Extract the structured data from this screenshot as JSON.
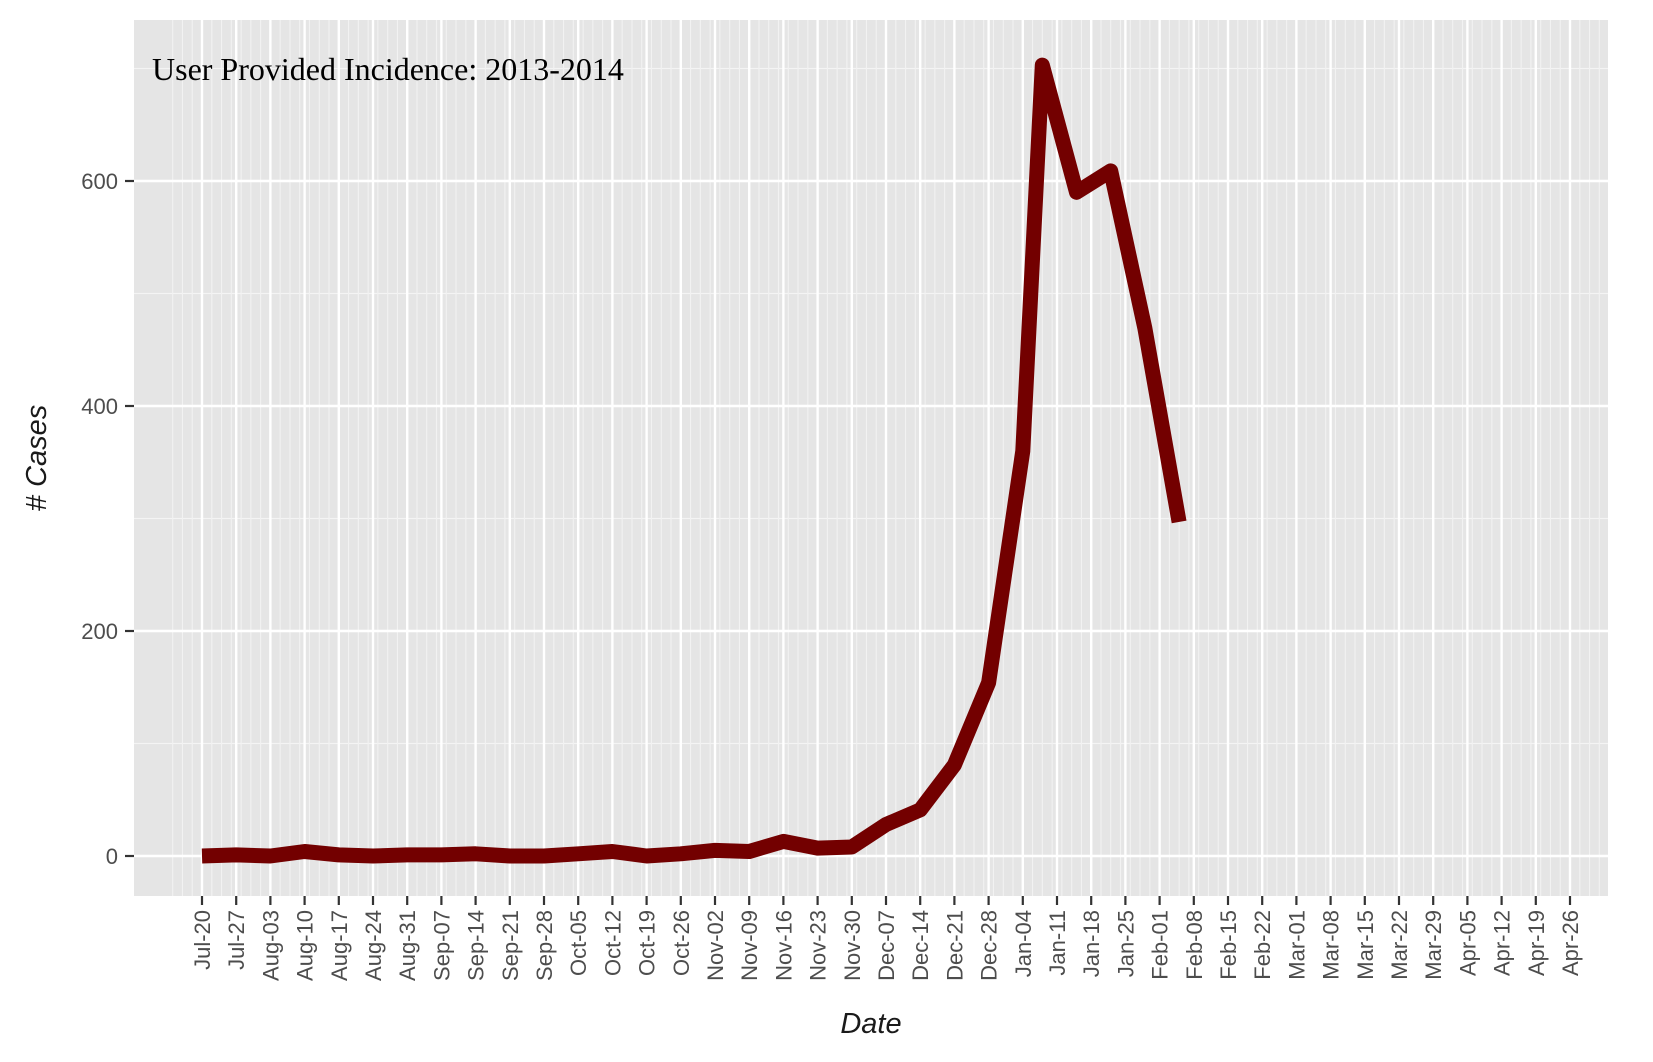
{
  "chart_data": {
    "type": "line",
    "title": "",
    "annotation": "User Provided Incidence: 2013-2014",
    "xlabel": "Date",
    "ylabel": "# Cases",
    "ylim": [
      -35,
      705
    ],
    "y_ticks": [
      0,
      200,
      400,
      600
    ],
    "x_tick_labels": [
      "Jul-20",
      "Jul-27",
      "Aug-03",
      "Aug-10",
      "Aug-17",
      "Aug-24",
      "Aug-31",
      "Sep-07",
      "Sep-14",
      "Sep-21",
      "Sep-28",
      "Oct-05",
      "Oct-12",
      "Oct-19",
      "Oct-26",
      "Nov-02",
      "Nov-09",
      "Nov-16",
      "Nov-23",
      "Nov-30",
      "Dec-07",
      "Dec-14",
      "Dec-21",
      "Dec-28",
      "Jan-04",
      "Jan-11",
      "Jan-18",
      "Jan-25",
      "Feb-01",
      "Feb-08",
      "Feb-15",
      "Feb-22",
      "Mar-01",
      "Mar-08",
      "Mar-15",
      "Mar-22",
      "Mar-29",
      "Apr-05",
      "Apr-12",
      "Apr-19",
      "Apr-26"
    ],
    "grid": true,
    "legend": "none",
    "series": [
      {
        "color": "#730000",
        "points": [
          {
            "x": "Jul-20",
            "y": 0
          },
          {
            "x": "Jul-27",
            "y": 1
          },
          {
            "x": "Aug-03",
            "y": 0
          },
          {
            "x": "Aug-10",
            "y": 4
          },
          {
            "x": "Aug-17",
            "y": 1
          },
          {
            "x": "Aug-24",
            "y": 0
          },
          {
            "x": "Aug-31",
            "y": 1
          },
          {
            "x": "Sep-07",
            "y": 1
          },
          {
            "x": "Sep-14",
            "y": 2
          },
          {
            "x": "Sep-21",
            "y": 0
          },
          {
            "x": "Sep-28",
            "y": 0
          },
          {
            "x": "Oct-05",
            "y": 2
          },
          {
            "x": "Oct-12",
            "y": 4
          },
          {
            "x": "Oct-19",
            "y": 0
          },
          {
            "x": "Oct-26",
            "y": 2
          },
          {
            "x": "Nov-02",
            "y": 5
          },
          {
            "x": "Nov-09",
            "y": 4
          },
          {
            "x": "Nov-16",
            "y": 13
          },
          {
            "x": "Nov-23",
            "y": 7
          },
          {
            "x": "Nov-30",
            "y": 8
          },
          {
            "x": "Dec-07",
            "y": 28
          },
          {
            "x": "Dec-14",
            "y": 41
          },
          {
            "x": "Dec-21",
            "y": 81
          },
          {
            "x": "Dec-28",
            "y": 154
          },
          {
            "x": "Jan-04",
            "y": 360
          },
          {
            "x": "Jan-08",
            "y": 703
          },
          {
            "x": "Jan-15",
            "y": 590
          },
          {
            "x": "Jan-22",
            "y": 609
          },
          {
            "x": "Jan-29",
            "y": 469
          },
          {
            "x": "Feb-05",
            "y": 297
          }
        ]
      }
    ]
  }
}
